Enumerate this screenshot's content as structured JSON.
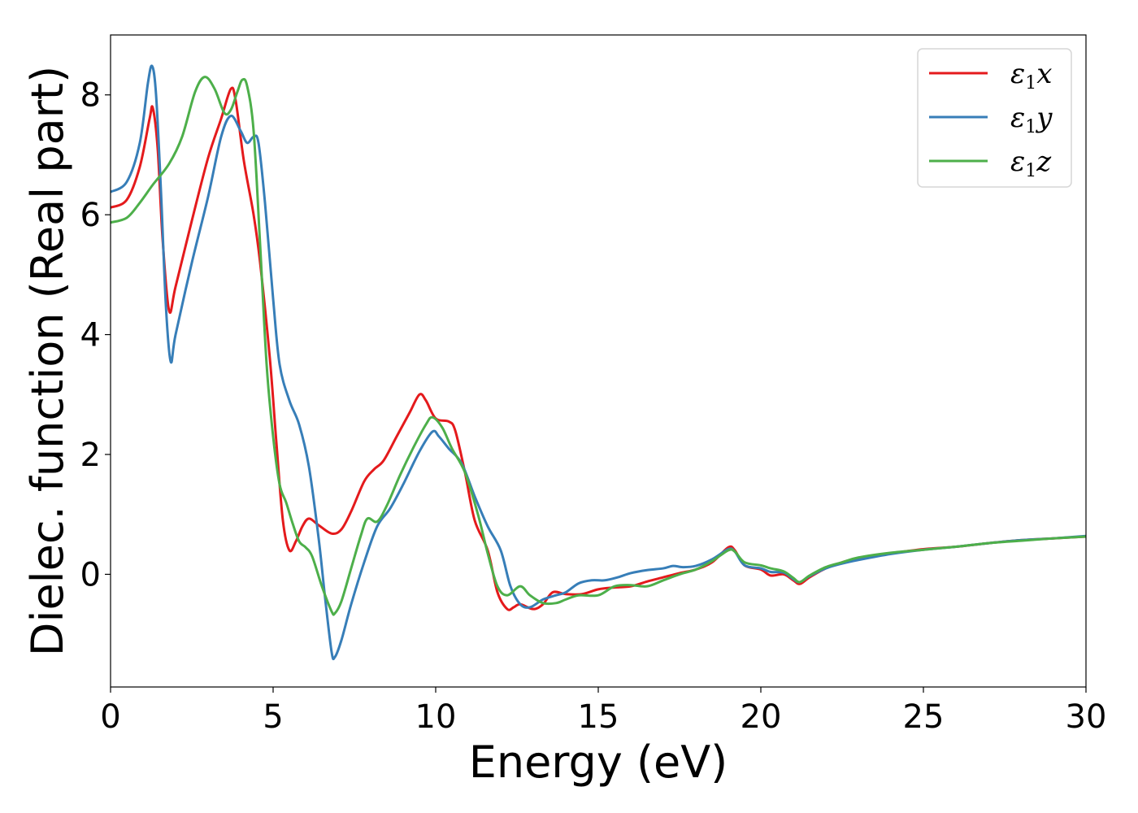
{
  "chart_data": {
    "type": "line",
    "title": "",
    "xlabel": "Energy (eV)",
    "ylabel": "Dielec. function (Real part)",
    "xlim": [
      0,
      30
    ],
    "ylim": [
      -1.88,
      9.0
    ],
    "xticks": [
      0,
      5,
      10,
      15,
      20,
      25,
      30
    ],
    "yticks": [
      0,
      2,
      4,
      6,
      8
    ],
    "grid": false,
    "legend_position": "upper right",
    "series": [
      {
        "name": "ε1x",
        "legend_base": "ε",
        "legend_sub": "1",
        "legend_var": "x",
        "color": "#e41a1c",
        "points": [
          [
            0,
            6.12
          ],
          [
            0.5,
            6.25
          ],
          [
            0.9,
            6.8
          ],
          [
            1.2,
            7.6
          ],
          [
            1.3,
            7.78
          ],
          [
            1.45,
            7.1
          ],
          [
            1.6,
            5.6
          ],
          [
            1.8,
            4.4
          ],
          [
            2.0,
            4.8
          ],
          [
            2.5,
            5.9
          ],
          [
            3.0,
            6.95
          ],
          [
            3.4,
            7.6
          ],
          [
            3.7,
            8.1
          ],
          [
            3.85,
            7.9
          ],
          [
            4.1,
            6.9
          ],
          [
            4.4,
            6.0
          ],
          [
            4.6,
            5.2
          ],
          [
            4.9,
            3.6
          ],
          [
            5.1,
            2.2
          ],
          [
            5.3,
            0.9
          ],
          [
            5.5,
            0.4
          ],
          [
            5.7,
            0.55
          ],
          [
            5.9,
            0.8
          ],
          [
            6.1,
            0.93
          ],
          [
            6.4,
            0.82
          ],
          [
            6.8,
            0.68
          ],
          [
            7.1,
            0.75
          ],
          [
            7.4,
            1.05
          ],
          [
            7.8,
            1.55
          ],
          [
            8.1,
            1.75
          ],
          [
            8.4,
            1.9
          ],
          [
            8.8,
            2.3
          ],
          [
            9.2,
            2.7
          ],
          [
            9.5,
            3.0
          ],
          [
            9.7,
            2.9
          ],
          [
            10.0,
            2.6
          ],
          [
            10.4,
            2.55
          ],
          [
            10.6,
            2.4
          ],
          [
            10.9,
            1.7
          ],
          [
            11.2,
            0.9
          ],
          [
            11.6,
            0.4
          ],
          [
            11.9,
            -0.3
          ],
          [
            12.2,
            -0.58
          ],
          [
            12.4,
            -0.55
          ],
          [
            12.6,
            -0.5
          ],
          [
            13.0,
            -0.58
          ],
          [
            13.3,
            -0.5
          ],
          [
            13.6,
            -0.3
          ],
          [
            14.0,
            -0.33
          ],
          [
            14.5,
            -0.33
          ],
          [
            15.0,
            -0.25
          ],
          [
            15.5,
            -0.22
          ],
          [
            16.0,
            -0.2
          ],
          [
            16.5,
            -0.12
          ],
          [
            17.0,
            -0.05
          ],
          [
            17.5,
            0.02
          ],
          [
            18.0,
            0.08
          ],
          [
            18.5,
            0.2
          ],
          [
            19.0,
            0.45
          ],
          [
            19.2,
            0.4
          ],
          [
            19.5,
            0.15
          ],
          [
            20.0,
            0.08
          ],
          [
            20.3,
            -0.02
          ],
          [
            20.7,
            0.0
          ],
          [
            21.0,
            -0.1
          ],
          [
            21.2,
            -0.16
          ],
          [
            21.5,
            -0.05
          ],
          [
            22.0,
            0.1
          ],
          [
            22.5,
            0.2
          ],
          [
            23.0,
            0.27
          ],
          [
            24.0,
            0.35
          ],
          [
            25.0,
            0.42
          ],
          [
            26.0,
            0.46
          ],
          [
            27.0,
            0.52
          ],
          [
            28.0,
            0.57
          ],
          [
            29.0,
            0.6
          ],
          [
            30.0,
            0.63
          ]
        ]
      },
      {
        "name": "ε1y",
        "legend_base": "ε",
        "legend_sub": "1",
        "legend_var": "y",
        "color": "#377eb8",
        "points": [
          [
            0,
            6.38
          ],
          [
            0.5,
            6.55
          ],
          [
            0.9,
            7.2
          ],
          [
            1.15,
            8.2
          ],
          [
            1.28,
            8.48
          ],
          [
            1.4,
            8.0
          ],
          [
            1.55,
            6.4
          ],
          [
            1.7,
            4.5
          ],
          [
            1.85,
            3.55
          ],
          [
            2.0,
            4.0
          ],
          [
            2.5,
            5.2
          ],
          [
            3.0,
            6.3
          ],
          [
            3.4,
            7.3
          ],
          [
            3.7,
            7.65
          ],
          [
            4.0,
            7.4
          ],
          [
            4.2,
            7.2
          ],
          [
            4.4,
            7.3
          ],
          [
            4.55,
            7.2
          ],
          [
            4.75,
            6.2
          ],
          [
            5.0,
            4.6
          ],
          [
            5.2,
            3.5
          ],
          [
            5.5,
            2.9
          ],
          [
            5.8,
            2.5
          ],
          [
            6.1,
            1.8
          ],
          [
            6.4,
            0.6
          ],
          [
            6.6,
            -0.4
          ],
          [
            6.8,
            -1.3
          ],
          [
            6.9,
            -1.38
          ],
          [
            7.1,
            -1.1
          ],
          [
            7.4,
            -0.5
          ],
          [
            7.8,
            0.2
          ],
          [
            8.2,
            0.8
          ],
          [
            8.6,
            1.1
          ],
          [
            9.0,
            1.5
          ],
          [
            9.5,
            2.05
          ],
          [
            9.9,
            2.38
          ],
          [
            10.1,
            2.3
          ],
          [
            10.4,
            2.1
          ],
          [
            10.8,
            1.85
          ],
          [
            11.2,
            1.3
          ],
          [
            11.6,
            0.8
          ],
          [
            12.0,
            0.4
          ],
          [
            12.3,
            -0.2
          ],
          [
            12.6,
            -0.5
          ],
          [
            12.9,
            -0.55
          ],
          [
            13.3,
            -0.42
          ],
          [
            13.7,
            -0.35
          ],
          [
            14.0,
            -0.3
          ],
          [
            14.4,
            -0.15
          ],
          [
            14.8,
            -0.1
          ],
          [
            15.2,
            -0.1
          ],
          [
            15.6,
            -0.05
          ],
          [
            16.0,
            0.02
          ],
          [
            16.5,
            0.07
          ],
          [
            17.0,
            0.1
          ],
          [
            17.3,
            0.14
          ],
          [
            17.6,
            0.12
          ],
          [
            18.0,
            0.14
          ],
          [
            18.5,
            0.25
          ],
          [
            19.0,
            0.42
          ],
          [
            19.2,
            0.38
          ],
          [
            19.5,
            0.15
          ],
          [
            20.0,
            0.1
          ],
          [
            20.3,
            0.04
          ],
          [
            20.7,
            0.03
          ],
          [
            21.0,
            -0.08
          ],
          [
            21.2,
            -0.13
          ],
          [
            21.5,
            -0.03
          ],
          [
            22.0,
            0.1
          ],
          [
            22.5,
            0.18
          ],
          [
            23.0,
            0.24
          ],
          [
            24.0,
            0.34
          ],
          [
            25.0,
            0.41
          ],
          [
            26.0,
            0.46
          ],
          [
            27.0,
            0.52
          ],
          [
            28.0,
            0.57
          ],
          [
            29.0,
            0.6
          ],
          [
            30.0,
            0.64
          ]
        ]
      },
      {
        "name": "ε1z",
        "legend_base": "ε",
        "legend_sub": "1",
        "legend_var": "z",
        "color": "#4daf4a",
        "points": [
          [
            0,
            5.87
          ],
          [
            0.5,
            5.95
          ],
          [
            0.9,
            6.2
          ],
          [
            1.3,
            6.5
          ],
          [
            1.8,
            6.85
          ],
          [
            2.2,
            7.3
          ],
          [
            2.6,
            8.05
          ],
          [
            2.9,
            8.3
          ],
          [
            3.2,
            8.1
          ],
          [
            3.5,
            7.7
          ],
          [
            3.7,
            7.75
          ],
          [
            3.9,
            8.05
          ],
          [
            4.05,
            8.25
          ],
          [
            4.2,
            8.15
          ],
          [
            4.4,
            7.4
          ],
          [
            4.6,
            5.5
          ],
          [
            4.8,
            3.5
          ],
          [
            5.0,
            2.3
          ],
          [
            5.2,
            1.5
          ],
          [
            5.4,
            1.2
          ],
          [
            5.6,
            0.85
          ],
          [
            5.8,
            0.55
          ],
          [
            6.0,
            0.45
          ],
          [
            6.2,
            0.3
          ],
          [
            6.5,
            -0.2
          ],
          [
            6.8,
            -0.62
          ],
          [
            6.9,
            -0.65
          ],
          [
            7.1,
            -0.45
          ],
          [
            7.4,
            0.1
          ],
          [
            7.7,
            0.65
          ],
          [
            7.9,
            0.93
          ],
          [
            8.2,
            0.88
          ],
          [
            8.5,
            1.15
          ],
          [
            8.9,
            1.65
          ],
          [
            9.3,
            2.1
          ],
          [
            9.7,
            2.5
          ],
          [
            9.9,
            2.62
          ],
          [
            10.2,
            2.45
          ],
          [
            10.5,
            2.1
          ],
          [
            10.9,
            1.7
          ],
          [
            11.3,
            1.0
          ],
          [
            11.6,
            0.35
          ],
          [
            11.9,
            -0.2
          ],
          [
            12.2,
            -0.35
          ],
          [
            12.6,
            -0.2
          ],
          [
            12.9,
            -0.35
          ],
          [
            13.3,
            -0.48
          ],
          [
            13.7,
            -0.48
          ],
          [
            14.0,
            -0.42
          ],
          [
            14.4,
            -0.35
          ],
          [
            15.0,
            -0.35
          ],
          [
            15.5,
            -0.2
          ],
          [
            16.0,
            -0.18
          ],
          [
            16.5,
            -0.2
          ],
          [
            17.0,
            -0.1
          ],
          [
            17.5,
            0.0
          ],
          [
            18.0,
            0.08
          ],
          [
            18.5,
            0.22
          ],
          [
            19.0,
            0.4
          ],
          [
            19.2,
            0.38
          ],
          [
            19.5,
            0.2
          ],
          [
            20.0,
            0.15
          ],
          [
            20.3,
            0.1
          ],
          [
            20.7,
            0.05
          ],
          [
            21.0,
            -0.06
          ],
          [
            21.2,
            -0.13
          ],
          [
            21.5,
            -0.02
          ],
          [
            22.0,
            0.12
          ],
          [
            22.5,
            0.2
          ],
          [
            23.0,
            0.28
          ],
          [
            24.0,
            0.36
          ],
          [
            25.0,
            0.41
          ],
          [
            26.0,
            0.46
          ],
          [
            27.0,
            0.52
          ],
          [
            28.0,
            0.56
          ],
          [
            29.0,
            0.6
          ],
          [
            30.0,
            0.63
          ]
        ]
      }
    ]
  }
}
